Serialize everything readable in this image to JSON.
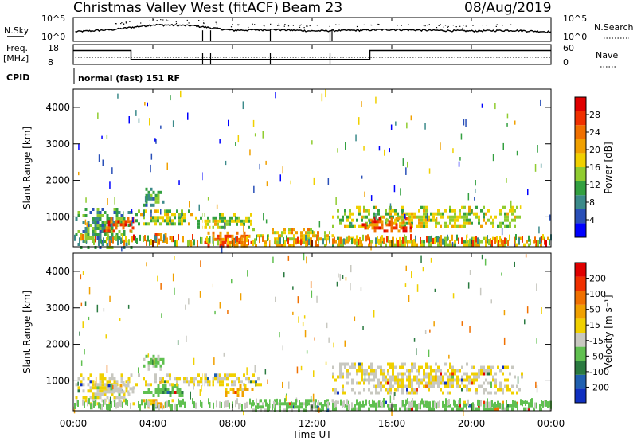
{
  "header": {
    "title": "Christmas Valley West (fitACF)",
    "beam": "Beam 23",
    "date": "08/Aug/2019"
  },
  "strip": {
    "nsky_label": "N.Sky",
    "nsearch_label": "N.Search",
    "freq_label_line1": "Freq.",
    "freq_label_line2": "[MHz]",
    "nave_label": "Nave",
    "cpid_label": "CPID",
    "cpid_text": "normal (fast) 151 RF",
    "nsky_ticks": [
      "10^5",
      "10^0"
    ],
    "nsearch_ticks": [
      "10^5",
      "10^0"
    ],
    "freq_ticks": [
      "18",
      "8"
    ],
    "nave_ticks": [
      "60",
      "0"
    ]
  },
  "axes": {
    "xlabel": "Time UT",
    "ylabel": "Slant Range [km]",
    "xticks": [
      "00:00",
      "04:00",
      "08:00",
      "12:00",
      "16:00",
      "20:00",
      "00:00"
    ],
    "yticks": [
      "1000",
      "2000",
      "3000",
      "4000"
    ]
  },
  "colorbars": {
    "power": {
      "label": "Power [dB]",
      "ticks": [
        "4",
        "8",
        "12",
        "16",
        "20",
        "24",
        "28"
      ],
      "colors": [
        "#0000ff",
        "#2a50b8",
        "#3b8a8a",
        "#33a040",
        "#90cc30",
        "#f0d000",
        "#f0a000",
        "#f07000",
        "#f03000",
        "#e00000"
      ]
    },
    "velocity": {
      "label": "Velocity [m s⁻¹]",
      "ticks": [
        "200",
        "100",
        "50",
        "15",
        "-15",
        "-50",
        "-100",
        "-200"
      ],
      "colors": [
        "#1030c0",
        "#2060b0",
        "#2a7a40",
        "#60c050",
        "#c8c8c0",
        "#f0d000",
        "#f0a000",
        "#f07000",
        "#f03000",
        "#e00000"
      ]
    }
  },
  "chart_data": [
    {
      "type": "line",
      "title": "N.Sky / N.Search",
      "x_range_hours": [
        0,
        24
      ],
      "y_scale": "log",
      "ylim": [
        1,
        100000
      ],
      "series": [
        {
          "name": "N.Sky",
          "x": [
            0,
            2,
            4,
            6,
            8,
            10,
            12,
            14,
            16,
            18,
            20,
            22,
            24
          ],
          "y": [
            100,
            300,
            3000,
            2000,
            200,
            300,
            150,
            200,
            300,
            200,
            150,
            200,
            100
          ]
        }
      ]
    },
    {
      "type": "line",
      "title": "Freq. / Nave",
      "x_range_hours": [
        0,
        24
      ],
      "ylim": [
        8,
        18
      ],
      "series": [
        {
          "name": "Freq. [MHz]",
          "x": [
            0,
            2.9,
            2.9,
            14.9,
            14.9,
            24
          ],
          "y": [
            15,
            15,
            10.5,
            10.5,
            15,
            15
          ]
        }
      ]
    },
    {
      "type": "heatmap",
      "title": "Power [dB]",
      "x_range_hours": [
        0,
        24
      ],
      "ylim": [
        180,
        4500
      ],
      "zlim": [
        0,
        30
      ],
      "regions": [
        {
          "t0": 0.1,
          "t1": 2.9,
          "r0": 200,
          "r1": 1250,
          "val": 10
        },
        {
          "t0": 1.5,
          "t1": 3.0,
          "r0": 600,
          "r1": 1000,
          "val": 24
        },
        {
          "t0": 3.0,
          "t1": 6.0,
          "r0": 800,
          "r1": 1200,
          "val": 14
        },
        {
          "t0": 3.5,
          "t1": 4.5,
          "r0": 1300,
          "r1": 1800,
          "val": 10
        },
        {
          "t0": 3.5,
          "t1": 5.5,
          "r0": 300,
          "r1": 550,
          "val": 22
        },
        {
          "t0": 6.0,
          "t1": 9.0,
          "r0": 700,
          "r1": 1100,
          "val": 14
        },
        {
          "t0": 6.5,
          "t1": 9.0,
          "r0": 200,
          "r1": 600,
          "val": 22
        },
        {
          "t0": 9.0,
          "t1": 13.0,
          "r0": 200,
          "r1": 700,
          "val": 18
        },
        {
          "t0": 13.0,
          "t1": 22.5,
          "r0": 700,
          "r1": 1300,
          "val": 14
        },
        {
          "t0": 14.5,
          "t1": 17.0,
          "r0": 600,
          "r1": 1000,
          "val": 24
        },
        {
          "t0": 13.0,
          "t1": 24.0,
          "r0": 200,
          "r1": 450,
          "val": 16
        }
      ]
    },
    {
      "type": "heatmap",
      "title": "Velocity [m s⁻¹]",
      "x_range_hours": [
        0,
        24
      ],
      "ylim": [
        180,
        4500
      ],
      "zlim": [
        -250,
        250
      ],
      "regions": [
        {
          "t0": 0.1,
          "t1": 3.0,
          "r0": 400,
          "r1": 1200,
          "val": 0
        },
        {
          "t0": 1.5,
          "t1": 3.0,
          "r0": 700,
          "r1": 1000,
          "val": -30
        },
        {
          "t0": 3.5,
          "t1": 5.5,
          "r0": 600,
          "r1": 900,
          "val": -80
        },
        {
          "t0": 3.5,
          "t1": 5.0,
          "r0": 300,
          "r1": 500,
          "val": 60
        },
        {
          "t0": 3.5,
          "t1": 4.5,
          "r0": 1300,
          "r1": 1800,
          "val": -60
        },
        {
          "t0": 3.0,
          "t1": 9.5,
          "r0": 900,
          "r1": 1200,
          "val": 0
        },
        {
          "t0": 7.5,
          "t1": 9.0,
          "r0": 600,
          "r1": 900,
          "val": 60
        },
        {
          "t0": 9.0,
          "t1": 13.0,
          "r0": 200,
          "r1": 500,
          "val": -70
        },
        {
          "t0": 13.0,
          "t1": 22.5,
          "r0": 700,
          "r1": 1500,
          "val": 0
        },
        {
          "t0": 13.0,
          "t1": 24.0,
          "r0": 200,
          "r1": 450,
          "val": -70
        }
      ]
    }
  ]
}
